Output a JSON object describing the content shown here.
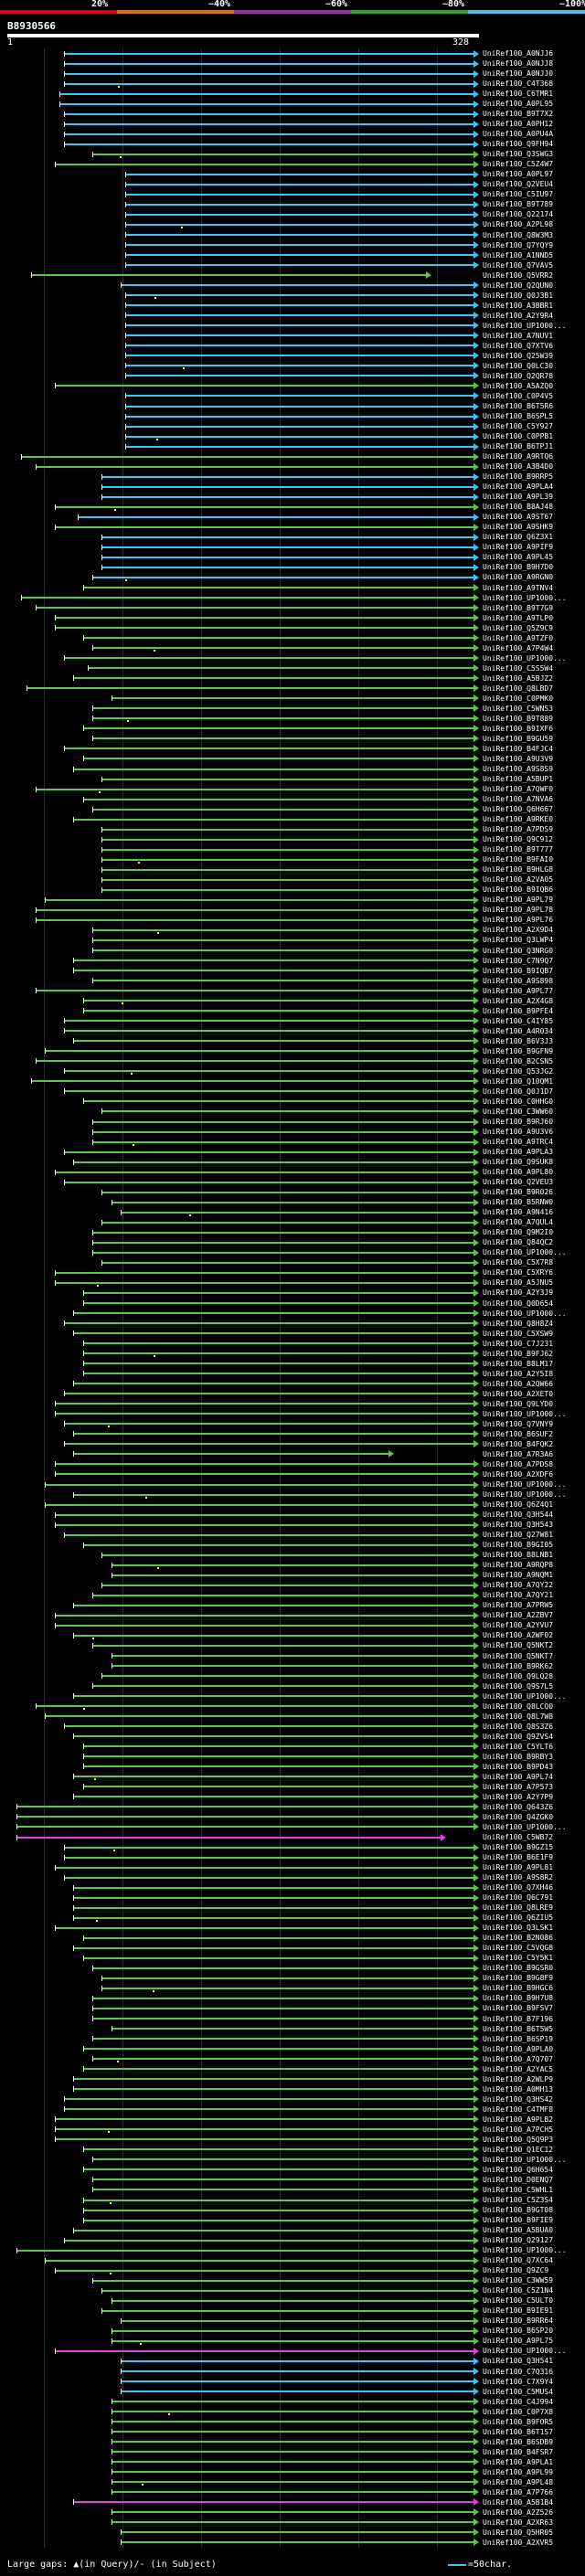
{
  "scale": {
    "labels": [
      "20%",
      "~40%",
      "~60%",
      "~80%",
      "~100%"
    ],
    "colors": [
      "#e0001b",
      "#e07000",
      "#9b2fa8",
      "#2aa52a",
      "#3fc3f5"
    ]
  },
  "query": {
    "id": "B8930566",
    "start": "1",
    "end": "328"
  },
  "hit_colors": {
    "cyan": "#3fc3f5",
    "green": "#57c64a",
    "magenta": "#e040e0",
    "tick": "#ffffff"
  },
  "hits": [
    [
      "UniRef100_A0NJJ6",
      "c",
      12,
      100
    ],
    [
      "UniRef100_A0NJJ8",
      "c",
      12,
      100
    ],
    [
      "UniRef100_A0NJJ0",
      "c",
      12,
      100
    ],
    [
      "UniRef100_C4T368",
      "c",
      12,
      100
    ],
    [
      "UniRef100_C6TMR1",
      "c",
      11,
      100
    ],
    [
      "UniRef100_A0PL95",
      "c",
      11,
      100
    ],
    [
      "UniRef100_B9T7X2",
      "c",
      12,
      100
    ],
    [
      "UniRef100_A0PH12",
      "c",
      12,
      100
    ],
    [
      "UniRef100_A0PU4A",
      "c",
      12,
      100
    ],
    [
      "UniRef100_Q9FH94",
      "c",
      12,
      100
    ],
    [
      "UniRef100_Q3SWG3",
      "g",
      18,
      100
    ],
    [
      "UniRef100_C5Z4W7",
      "g",
      10,
      100
    ],
    [
      "UniRef100_A0PL97",
      "c",
      25,
      100
    ],
    [
      "UniRef100_Q2VEU4",
      "c",
      25,
      100
    ],
    [
      "UniRef100_C5IU97",
      "c",
      25,
      100
    ],
    [
      "UniRef100_B9T789",
      "c",
      25,
      100
    ],
    [
      "UniRef100_Q22174",
      "c",
      25,
      100
    ],
    [
      "UniRef100_A2PL98",
      "c",
      25,
      100
    ],
    [
      "UniRef100_Q8W3M3",
      "c",
      25,
      100
    ],
    [
      "UniRef100_Q7YQY9",
      "c",
      25,
      100
    ],
    [
      "UniRef100_A1NND5",
      "c",
      25,
      100
    ],
    [
      "UniRef100_Q7VAV5",
      "c",
      25,
      100
    ],
    [
      "UniRef100_Q5VRR2",
      "g",
      5,
      90
    ],
    [
      "UniRef100_Q2QUN0",
      "c",
      24,
      100
    ],
    [
      "UniRef100_Q0J3B1",
      "c",
      25,
      100
    ],
    [
      "UniRef100_A3BBR1",
      "c",
      25,
      100
    ],
    [
      "UniRef100_A2Y9R4",
      "c",
      25,
      100
    ],
    [
      "UniRef100_UP1000...",
      "c",
      25,
      100
    ],
    [
      "UniRef100_A7NUV1",
      "c",
      25,
      100
    ],
    [
      "UniRef100_Q7XTV6",
      "c",
      25,
      100
    ],
    [
      "UniRef100_Q25W39",
      "c",
      25,
      100
    ],
    [
      "UniRef100_Q0LC30",
      "c",
      25,
      100
    ],
    [
      "UniRef100_Q2QR78",
      "c",
      25,
      100
    ],
    [
      "UniRef100_A5AZQ0",
      "g",
      10,
      100
    ],
    [
      "UniRef100_C0P4V5",
      "c",
      25,
      100
    ],
    [
      "UniRef100_B6T5R6",
      "c",
      25,
      100
    ],
    [
      "UniRef100_B6SPL5",
      "c",
      25,
      100
    ],
    [
      "UniRef100_C5Y927",
      "c",
      25,
      100
    ],
    [
      "UniRef100_C0PPB1",
      "c",
      25,
      100
    ],
    [
      "UniRef100_B6TPJ1",
      "c",
      25,
      100
    ],
    [
      "UniRef100_A9RTQ6",
      "g",
      3,
      100
    ],
    [
      "UniRef100_A3B4D0",
      "g",
      6,
      100
    ],
    [
      "UniRef100_B9RRP5",
      "c",
      20,
      100
    ],
    [
      "UniRef100_A9PLA4",
      "c",
      20,
      100
    ],
    [
      "UniRef100_A9PL39",
      "c",
      20,
      100
    ],
    [
      "UniRef100_B8AJ48",
      "g",
      10,
      100
    ],
    [
      "UniRef100_A9ST67",
      "c",
      15,
      100
    ],
    [
      "UniRef100_A9SHK9",
      "g",
      10,
      100
    ],
    [
      "UniRef100_Q6Z3X1",
      "c",
      20,
      100
    ],
    [
      "UniRef100_A9PIF9",
      "c",
      20,
      100
    ],
    [
      "UniRef100_A9PL45",
      "c",
      20,
      100
    ],
    [
      "UniRef100_B9H7D0",
      "c",
      20,
      100
    ],
    [
      "UniRef100_A9RGN0",
      "c",
      18,
      100
    ],
    [
      "UniRef100_A9TNV4",
      "g",
      16,
      100
    ],
    [
      "UniRef100_UP1000...",
      "g",
      3,
      100
    ],
    [
      "UniRef100_B9T7G9",
      "g",
      6,
      100
    ],
    [
      "UniRef100_A9TLP0",
      "g",
      10,
      100
    ],
    [
      "UniRef100_Q5Z9C9",
      "g",
      10,
      100
    ],
    [
      "UniRef100_A9TZF0",
      "g",
      16,
      100
    ],
    [
      "UniRef100_A7P4W4",
      "g",
      18,
      100
    ],
    [
      "UniRef100_UP1000...",
      "g",
      12,
      100
    ],
    [
      "UniRef100_C5S5W4",
      "g",
      17,
      100
    ],
    [
      "UniRef100_A5BJZ2",
      "g",
      14,
      100
    ],
    [
      "UniRef100_Q8LBD7",
      "g",
      4,
      100
    ],
    [
      "UniRef100_C0PMK0",
      "g",
      22,
      100
    ],
    [
      "UniRef100_C5WNS3",
      "g",
      18,
      100
    ],
    [
      "UniRef100_B9T889",
      "g",
      18,
      100
    ],
    [
      "UniRef100_B9IXF6",
      "g",
      16,
      100
    ],
    [
      "UniRef100_B9GU59",
      "g",
      18,
      100
    ],
    [
      "UniRef100_B4FJC4",
      "g",
      12,
      100
    ],
    [
      "UniRef100_A9U3V9",
      "g",
      16,
      100
    ],
    [
      "UniRef100_A9S8S9",
      "g",
      14,
      100
    ],
    [
      "UniRef100_A5BUP1",
      "g",
      20,
      100
    ],
    [
      "UniRef100_A7QWF0",
      "g",
      6,
      100
    ],
    [
      "UniRef100_A7NVA6",
      "g",
      16,
      100
    ],
    [
      "UniRef100_Q6H667",
      "g",
      18,
      100
    ],
    [
      "UniRef100_A9RKE0",
      "g",
      14,
      100
    ],
    [
      "UniRef100_A7PDS9",
      "g",
      20,
      100
    ],
    [
      "UniRef100_Q9C912",
      "g",
      20,
      100
    ],
    [
      "UniRef100_B9T777",
      "g",
      20,
      100
    ],
    [
      "UniRef100_B9FAI0",
      "g",
      20,
      100
    ],
    [
      "UniRef100_B9HLG8",
      "g",
      20,
      100
    ],
    [
      "UniRef100_A2VA05",
      "g",
      20,
      100
    ],
    [
      "UniRef100_B9IQB6",
      "g",
      20,
      100
    ],
    [
      "UniRef100_A9PL79",
      "g",
      8,
      100
    ],
    [
      "UniRef100_A9PL78",
      "g",
      6,
      100
    ],
    [
      "UniRef100_A9PL76",
      "g",
      6,
      100
    ],
    [
      "UniRef100_A2X9D4",
      "g",
      18,
      100
    ],
    [
      "UniRef100_Q3LWP4",
      "g",
      18,
      100
    ],
    [
      "UniRef100_Q3NRG0",
      "g",
      18,
      100
    ],
    [
      "UniRef100_C7N9Q7",
      "g",
      14,
      100
    ],
    [
      "UniRef100_B9IQB7",
      "g",
      14,
      100
    ],
    [
      "UniRef100_A9S898",
      "g",
      18,
      100
    ],
    [
      "UniRef100_A9PL77",
      "g",
      6,
      100
    ],
    [
      "UniRef100_A2X4G8",
      "g",
      16,
      100
    ],
    [
      "UniRef100_B9PFE4",
      "g",
      16,
      100
    ],
    [
      "UniRef100_C4IY85",
      "g",
      12,
      100
    ],
    [
      "UniRef100_A4R034",
      "g",
      12,
      100
    ],
    [
      "UniRef100_B6V3J3",
      "g",
      14,
      100
    ],
    [
      "UniRef100_B9GFN9",
      "g",
      8,
      100
    ],
    [
      "UniRef100_B2CSN5",
      "g",
      6,
      100
    ],
    [
      "UniRef100_Q53JG2",
      "g",
      12,
      100
    ],
    [
      "UniRef100_Q10QM1",
      "g",
      5,
      100
    ],
    [
      "UniRef100_Q0J1D7",
      "g",
      12,
      100
    ],
    [
      "UniRef100_C0HHG0",
      "g",
      16,
      100
    ],
    [
      "UniRef100_C3WW60",
      "g",
      20,
      100
    ],
    [
      "UniRef100_B9RJ60",
      "g",
      18,
      100
    ],
    [
      "UniRef100_A9U3V6",
      "g",
      18,
      100
    ],
    [
      "UniRef100_A9TRC4",
      "g",
      18,
      100
    ],
    [
      "UniRef100_A9PLA3",
      "g",
      12,
      100
    ],
    [
      "UniRef100_Q9SUK8",
      "g",
      14,
      100
    ],
    [
      "UniRef100_A9PL80",
      "g",
      10,
      100
    ],
    [
      "UniRef100_Q2VEU3",
      "g",
      12,
      100
    ],
    [
      "UniRef100_B9R026",
      "g",
      20,
      100
    ],
    [
      "UniRef100_B5RNW0",
      "g",
      22,
      100
    ],
    [
      "UniRef100_A9N416",
      "g",
      24,
      100
    ],
    [
      "UniRef100_A7QUL4",
      "g",
      20,
      100
    ],
    [
      "UniRef100_Q9M2I0",
      "g",
      18,
      100
    ],
    [
      "UniRef100_Q84QC2",
      "g",
      18,
      100
    ],
    [
      "UniRef100_UP1000...",
      "g",
      18,
      100
    ],
    [
      "UniRef100_C5X7R8",
      "g",
      20,
      100
    ],
    [
      "UniRef100_C5XRY6",
      "g",
      10,
      100
    ],
    [
      "UniRef100_A5JNU5",
      "g",
      10,
      100
    ],
    [
      "UniRef100_A2Y3J9",
      "g",
      16,
      100
    ],
    [
      "UniRef100_Q0D654",
      "g",
      16,
      100
    ],
    [
      "UniRef100_UP1000...",
      "g",
      14,
      100
    ],
    [
      "UniRef100_Q8H8Z4",
      "g",
      12,
      100
    ],
    [
      "UniRef100_C5XSW9",
      "g",
      14,
      100
    ],
    [
      "UniRef100_C7J231",
      "g",
      16,
      100
    ],
    [
      "UniRef100_B9FJ62",
      "g",
      16,
      100
    ],
    [
      "UniRef100_B8LM17",
      "g",
      16,
      100
    ],
    [
      "UniRef100_A2Y5I8",
      "g",
      16,
      100
    ],
    [
      "UniRef100_A2QW66",
      "g",
      14,
      100
    ],
    [
      "UniRef100_A2XET0",
      "g",
      12,
      100
    ],
    [
      "UniRef100_Q9LYD0",
      "g",
      10,
      100
    ],
    [
      "UniRef100_UP1000...",
      "g",
      10,
      100
    ],
    [
      "UniRef100_Q7VNY9",
      "g",
      12,
      100
    ],
    [
      "UniRef100_B6SUF2",
      "g",
      14,
      100
    ],
    [
      "UniRef100_B4FQK2",
      "g",
      12,
      100
    ],
    [
      "UniRef100_A7R3A6",
      "g",
      14,
      82
    ],
    [
      "UniRef100_A7PDS8",
      "g",
      10,
      100
    ],
    [
      "UniRef100_A2XDF6",
      "g",
      10,
      100
    ],
    [
      "UniRef100_UP1000...",
      "g",
      8,
      100
    ],
    [
      "UniRef100_UP1000...",
      "g",
      14,
      100
    ],
    [
      "UniRef100_Q6Z4Q1",
      "g",
      8,
      100
    ],
    [
      "UniRef100_Q3H544",
      "g",
      10,
      100
    ],
    [
      "UniRef100_Q3H543",
      "g",
      10,
      100
    ],
    [
      "UniRef100_Q27W81",
      "g",
      12,
      100
    ],
    [
      "UniRef100_B9GI05",
      "g",
      16,
      100
    ],
    [
      "UniRef100_B8LNB1",
      "g",
      20,
      100
    ],
    [
      "UniRef100_A9RQP8",
      "g",
      22,
      100
    ],
    [
      "UniRef100_A9NQM1",
      "g",
      22,
      100
    ],
    [
      "UniRef100_A7QY22",
      "g",
      20,
      100
    ],
    [
      "UniRef100_A7QY21",
      "g",
      18,
      100
    ],
    [
      "UniRef100_A7PRW5",
      "g",
      14,
      100
    ],
    [
      "UniRef100_A2ZBV7",
      "g",
      10,
      100
    ],
    [
      "UniRef100_A2YVU7",
      "g",
      10,
      100
    ],
    [
      "UniRef100_A2WF02",
      "g",
      14,
      100
    ],
    [
      "UniRef100_Q5NKT2",
      "g",
      18,
      100
    ],
    [
      "UniRef100_Q5NKT7",
      "g",
      22,
      100
    ],
    [
      "UniRef100_B9RK62",
      "g",
      22,
      100
    ],
    [
      "UniRef100_Q9LQ28",
      "g",
      20,
      100
    ],
    [
      "UniRef100_Q9S7L5",
      "g",
      18,
      100
    ],
    [
      "UniRef100_UP1000...",
      "g",
      14,
      100
    ],
    [
      "UniRef100_Q8LCQ0",
      "g",
      6,
      100
    ],
    [
      "UniRef100_Q8L7W8",
      "g",
      8,
      100
    ],
    [
      "UniRef100_Q8S3Z6",
      "g",
      12,
      100
    ],
    [
      "UniRef100_Q9ZVS4",
      "g",
      14,
      100
    ],
    [
      "UniRef100_C5YLT6",
      "g",
      16,
      100
    ],
    [
      "UniRef100_B9RBY3",
      "g",
      16,
      100
    ],
    [
      "UniRef100_B9PD43",
      "g",
      16,
      100
    ],
    [
      "UniRef100_A9PL74",
      "g",
      14,
      100
    ],
    [
      "UniRef100_A7P573",
      "g",
      16,
      100
    ],
    [
      "UniRef100_A2Y7P9",
      "g",
      14,
      100
    ],
    [
      "UniRef100_Q643Z6",
      "g",
      2,
      100
    ],
    [
      "UniRef100_Q4ZGK0",
      "g",
      2,
      100
    ],
    [
      "UniRef100_UP1000...",
      "g",
      2,
      100
    ],
    [
      "UniRef100_C5WB72",
      "m",
      2,
      93
    ],
    [
      "UniRef100_B9GZ15",
      "g",
      12,
      100
    ],
    [
      "UniRef100_B6E1F9",
      "g",
      12,
      100
    ],
    [
      "UniRef100_A9PL81",
      "g",
      10,
      100
    ],
    [
      "UniRef100_A9S8R2",
      "g",
      12,
      100
    ],
    [
      "UniRef100_Q7XH46",
      "g",
      14,
      100
    ],
    [
      "UniRef100_Q6C791",
      "g",
      14,
      100
    ],
    [
      "UniRef100_Q8LRE9",
      "g",
      14,
      100
    ],
    [
      "UniRef100_Q6ZIU5",
      "g",
      14,
      100
    ],
    [
      "UniRef100_Q3LSK1",
      "g",
      10,
      100
    ],
    [
      "UniRef100_B2N086",
      "g",
      16,
      100
    ],
    [
      "UniRef100_C5VQG8",
      "g",
      14,
      100
    ],
    [
      "UniRef100_C5Y5K1",
      "g",
      16,
      100
    ],
    [
      "UniRef100_B9GSR0",
      "g",
      18,
      100
    ],
    [
      "UniRef100_B9G8F9",
      "g",
      20,
      100
    ],
    [
      "UniRef100_B9HGC6",
      "g",
      20,
      100
    ],
    [
      "UniRef100_B9H7U8",
      "g",
      18,
      100
    ],
    [
      "UniRef100_B9FSV7",
      "g",
      18,
      100
    ],
    [
      "UniRef100_B7F196",
      "g",
      18,
      100
    ],
    [
      "UniRef100_B6T5W5",
      "g",
      22,
      100
    ],
    [
      "UniRef100_B6SP19",
      "g",
      18,
      100
    ],
    [
      "UniRef100_A9PLA0",
      "g",
      16,
      100
    ],
    [
      "UniRef100_A7Q707",
      "g",
      18,
      100
    ],
    [
      "UniRef100_A2YAC5",
      "g",
      16,
      100
    ],
    [
      "UniRef100_A2WLP9",
      "g",
      14,
      100
    ],
    [
      "UniRef100_A0MH13",
      "g",
      14,
      100
    ],
    [
      "UniRef100_Q3HS42",
      "g",
      12,
      100
    ],
    [
      "UniRef100_C4TMF8",
      "g",
      12,
      100
    ],
    [
      "UniRef100_A9PLB2",
      "g",
      10,
      100
    ],
    [
      "UniRef100_A7PCH5",
      "g",
      10,
      100
    ],
    [
      "UniRef100_Q5Q9P3",
      "g",
      10,
      100
    ],
    [
      "UniRef100_Q1EC12",
      "g",
      16,
      100
    ],
    [
      "UniRef100_UP1000...",
      "g",
      18,
      100
    ],
    [
      "UniRef100_Q6H654",
      "g",
      16,
      100
    ],
    [
      "UniRef100_D0ENQ7",
      "g",
      18,
      100
    ],
    [
      "UniRef100_C5WHL1",
      "g",
      18,
      100
    ],
    [
      "UniRef100_C5Z3S4",
      "g",
      16,
      100
    ],
    [
      "UniRef100_B9GT08",
      "g",
      16,
      100
    ],
    [
      "UniRef100_B9FIE9",
      "g",
      16,
      100
    ],
    [
      "UniRef100_A5BUA0",
      "g",
      14,
      100
    ],
    [
      "UniRef100_Q29127",
      "g",
      12,
      100
    ],
    [
      "UniRef100_UP1000...",
      "g",
      2,
      100
    ],
    [
      "UniRef100_Q7XC64",
      "g",
      8,
      100
    ],
    [
      "UniRef100_Q9ZC9",
      "g",
      10,
      100
    ],
    [
      "UniRef100_C3WW59",
      "g",
      18,
      100
    ],
    [
      "UniRef100_C5Z1N4",
      "g",
      20,
      100
    ],
    [
      "UniRef100_C5ULT0",
      "g",
      22,
      100
    ],
    [
      "UniRef100_B9IE91",
      "g",
      20,
      100
    ],
    [
      "UniRef100_B9RR64",
      "g",
      24,
      100
    ],
    [
      "UniRef100_B6SP20",
      "g",
      22,
      100
    ],
    [
      "UniRef100_A9PL75",
      "g",
      22,
      100
    ],
    [
      "UniRef100_UP1000...",
      "m",
      10,
      100
    ],
    [
      "UniRef100_Q3H541",
      "c",
      24,
      100
    ],
    [
      "UniRef100_C7Q316",
      "c",
      24,
      100
    ],
    [
      "UniRef100_C7X9Y4",
      "c",
      24,
      100
    ],
    [
      "UniRef100_C5MUS4",
      "c",
      24,
      100
    ],
    [
      "UniRef100_C4J994",
      "g",
      22,
      100
    ],
    [
      "UniRef100_C0P7X8",
      "g",
      22,
      100
    ],
    [
      "UniRef100_B9FOR5",
      "g",
      22,
      100
    ],
    [
      "UniRef100_B6T1S7",
      "g",
      22,
      100
    ],
    [
      "UniRef100_B6SDB9",
      "g",
      22,
      100
    ],
    [
      "UniRef100_B4FSR7",
      "g",
      22,
      100
    ],
    [
      "UniRef100_A9PLA1",
      "g",
      22,
      100
    ],
    [
      "UniRef100_A9PL99",
      "g",
      22,
      100
    ],
    [
      "UniRef100_A9PL48",
      "g",
      22,
      100
    ],
    [
      "UniRef100_A7P766",
      "g",
      22,
      100
    ],
    [
      "UniRef100_A5B1B4",
      "m",
      14,
      100
    ],
    [
      "UniRef100_A2Z526",
      "g",
      22,
      100
    ],
    [
      "UniRef100_A2XR63",
      "g",
      22,
      100
    ],
    [
      "UniRef100_Q5HR05",
      "g",
      24,
      100
    ],
    [
      "UniRef100_A2XVR5",
      "g",
      24,
      100
    ]
  ],
  "legend": {
    "left": "Large gaps: ▲(in Query)/- (in Subject)",
    "right": "=50char."
  }
}
